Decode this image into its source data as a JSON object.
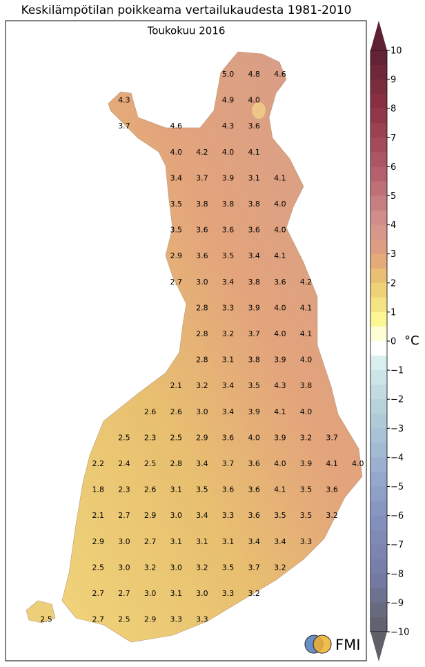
{
  "header": {
    "title": "Keskilämpötilan poikkeama vertailukaudesta 1981-2010",
    "subtitle": "Toukokuu 2016"
  },
  "map": {
    "grid": [
      [
        null,
        null,
        null,
        null,
        null,
        null,
        null,
        "5.0",
        "4.8",
        "4.6",
        null,
        null,
        null
      ],
      [
        null,
        null,
        null,
        "4.3",
        null,
        null,
        null,
        "4.9",
        "4.0",
        null,
        null,
        null,
        null
      ],
      [
        null,
        null,
        null,
        "3.7",
        null,
        "4.6",
        null,
        "4.3",
        "3.6",
        null,
        null,
        null,
        null
      ],
      [
        null,
        null,
        null,
        null,
        null,
        "4.0",
        "4.2",
        "4.0",
        "4.1",
        null,
        null,
        null,
        null
      ],
      [
        null,
        null,
        null,
        null,
        null,
        "3.4",
        "3.7",
        "3.9",
        "3.1",
        "4.1",
        null,
        null,
        null
      ],
      [
        null,
        null,
        null,
        null,
        null,
        "3.5",
        "3.8",
        "3.8",
        "3.8",
        "4.0",
        null,
        null,
        null
      ],
      [
        null,
        null,
        null,
        null,
        null,
        "3.5",
        "3.6",
        "3.6",
        "3.6",
        "4.0",
        null,
        null,
        null
      ],
      [
        null,
        null,
        null,
        null,
        null,
        "2.9",
        "3.6",
        "3.5",
        "3.4",
        "4.1",
        null,
        null,
        null
      ],
      [
        null,
        null,
        null,
        null,
        null,
        "2.7",
        "3.0",
        "3.4",
        "3.8",
        "3.6",
        "4.2",
        null,
        null
      ],
      [
        null,
        null,
        null,
        null,
        null,
        null,
        "2.8",
        "3.3",
        "3.9",
        "4.0",
        "4.1",
        null,
        null
      ],
      [
        null,
        null,
        null,
        null,
        null,
        null,
        "2.8",
        "3.2",
        "3.7",
        "4.0",
        "4.1",
        null,
        null
      ],
      [
        null,
        null,
        null,
        null,
        null,
        null,
        "2.8",
        "3.1",
        "3.8",
        "3.9",
        "4.0",
        null,
        null
      ],
      [
        null,
        null,
        null,
        null,
        null,
        "2.1",
        "3.2",
        "3.4",
        "3.5",
        "4.3",
        "3.8",
        null,
        null
      ],
      [
        null,
        null,
        null,
        null,
        "2.6",
        "2.6",
        "3.0",
        "3.4",
        "3.9",
        "4.1",
        "4.0",
        null,
        null
      ],
      [
        null,
        null,
        null,
        "2.5",
        "2.3",
        "2.5",
        "2.9",
        "3.6",
        "4.0",
        "3.9",
        "3.2",
        "3.7",
        null
      ],
      [
        null,
        null,
        "2.2",
        "2.4",
        "2.5",
        "2.8",
        "3.4",
        "3.7",
        "3.6",
        "4.0",
        "3.9",
        "4.1",
        "4.0"
      ],
      [
        null,
        null,
        "1.8",
        "2.3",
        "2.6",
        "3.1",
        "3.5",
        "3.6",
        "3.6",
        "4.1",
        "3.5",
        "3.6",
        null
      ],
      [
        null,
        null,
        "2.1",
        "2.7",
        "2.9",
        "3.0",
        "3.4",
        "3.3",
        "3.6",
        "3.5",
        "3.5",
        "3.2",
        null
      ],
      [
        null,
        null,
        "2.9",
        "3.0",
        "2.7",
        "3.1",
        "3.1",
        "3.1",
        "3.4",
        "3.4",
        "3.3",
        null,
        null
      ],
      [
        null,
        null,
        "2.5",
        "3.0",
        "3.2",
        "3.0",
        "3.2",
        "3.5",
        "3.7",
        "3.2",
        null,
        null,
        null
      ],
      [
        null,
        null,
        "2.7",
        "2.7",
        "3.0",
        "3.1",
        "3.0",
        "3.3",
        "3.2",
        null,
        null,
        null,
        null
      ],
      [
        "2.5",
        null,
        "2.7",
        "2.5",
        "2.9",
        "3.3",
        "3.3",
        null,
        null,
        null,
        null,
        null,
        null
      ]
    ]
  },
  "colorbar": {
    "ticks": [
      "10",
      "9",
      "8",
      "7",
      "6",
      "5",
      "4",
      "3",
      "2",
      "1",
      "0",
      "−1",
      "−2",
      "−3",
      "−4",
      "−5",
      "−6",
      "−7",
      "−8",
      "−9",
      "−10"
    ],
    "unit": "°C"
  },
  "logo": {
    "text": "FMI"
  }
}
